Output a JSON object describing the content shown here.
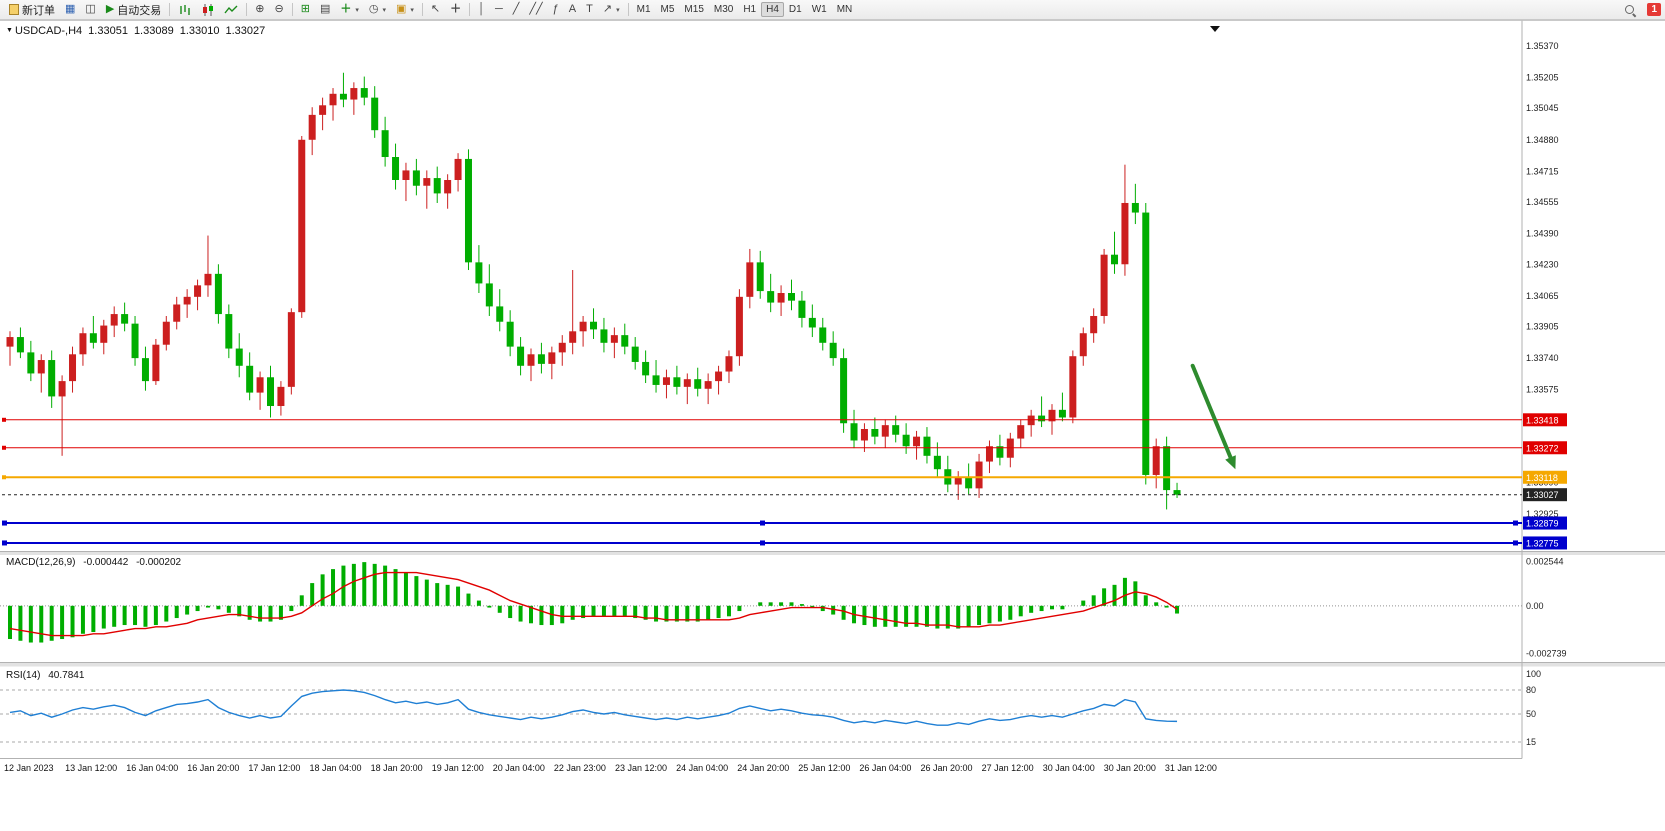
{
  "window": {
    "badge_count": "1"
  },
  "toolbar": {
    "new_order_label": "新订单",
    "auto_trading_label": "自动交易",
    "timeframes": [
      "M1",
      "M5",
      "M15",
      "M30",
      "H1",
      "H4",
      "D1",
      "W1",
      "MN"
    ],
    "active_timeframe": "H4"
  },
  "quote": {
    "symbol": "USDCAD-,H4",
    "open": "1.33051",
    "high": "1.33089",
    "low": "1.33010",
    "close": "1.33027"
  },
  "indicators": {
    "macd": {
      "label": "MACD(12,26,9)",
      "value_main": "-0.000442",
      "value_signal": "-0.000202",
      "axis_labels": [
        "0.002544",
        "0.00",
        "-0.002739"
      ],
      "axis_values": [
        0.002544,
        0,
        -0.002739
      ]
    },
    "rsi": {
      "label": "RSI(14)",
      "value": "40.7841",
      "axis_labels": [
        "100",
        "80",
        "50",
        "15"
      ],
      "axis_values": [
        100,
        80,
        50,
        15
      ],
      "levels": [
        80,
        50,
        15
      ]
    }
  },
  "chart_data": {
    "type": "candlestick",
    "symbol": "USDCAD-",
    "timeframe": "H4",
    "up_color": "#cc1f1f",
    "down_color": "#00ad00",
    "price_max": 1.35474,
    "price_min": 1.32733,
    "y_axis_labels": [
      "1.35370",
      "1.35205",
      "1.35045",
      "1.34880",
      "1.34715",
      "1.34555",
      "1.34390",
      "1.34230",
      "1.34065",
      "1.33905",
      "1.33740",
      "1.33575",
      "1.33090",
      "1.32925"
    ],
    "x_labels": [
      "12 Jan 2023",
      "13 Jan 12:00",
      "16 Jan 04:00",
      "16 Jan 20:00",
      "17 Jan 12:00",
      "18 Jan 04:00",
      "18 Jan 20:00",
      "19 Jan 12:00",
      "20 Jan 04:00",
      "22 Jan 23:00",
      "23 Jan 12:00",
      "24 Jan 04:00",
      "24 Jan 20:00",
      "25 Jan 12:00",
      "26 Jan 04:00",
      "26 Jan 20:00",
      "27 Jan 12:00",
      "30 Jan 04:00",
      "30 Jan 20:00",
      "31 Jan 12:00"
    ],
    "candles": [
      [
        1.338,
        1.3388,
        1.337,
        1.3385
      ],
      [
        1.3385,
        1.339,
        1.3374,
        1.3377
      ],
      [
        1.3377,
        1.3383,
        1.3362,
        1.3366
      ],
      [
        1.3366,
        1.3376,
        1.3356,
        1.3373
      ],
      [
        1.3373,
        1.3378,
        1.3348,
        1.3354
      ],
      [
        1.3354,
        1.3365,
        1.3323,
        1.3362
      ],
      [
        1.3362,
        1.338,
        1.3356,
        1.3376
      ],
      [
        1.3376,
        1.339,
        1.337,
        1.3387
      ],
      [
        1.3387,
        1.3396,
        1.3379,
        1.3382
      ],
      [
        1.3382,
        1.3394,
        1.3376,
        1.3391
      ],
      [
        1.3391,
        1.3401,
        1.3385,
        1.3397
      ],
      [
        1.3397,
        1.3403,
        1.3388,
        1.3392
      ],
      [
        1.3392,
        1.3396,
        1.337,
        1.3374
      ],
      [
        1.3374,
        1.338,
        1.3357,
        1.3362
      ],
      [
        1.3362,
        1.3384,
        1.336,
        1.3381
      ],
      [
        1.3381,
        1.3396,
        1.3378,
        1.3393
      ],
      [
        1.3393,
        1.3406,
        1.3389,
        1.3402
      ],
      [
        1.3402,
        1.341,
        1.3395,
        1.3406
      ],
      [
        1.3406,
        1.3415,
        1.3399,
        1.3412
      ],
      [
        1.3412,
        1.3438,
        1.3406,
        1.3418
      ],
      [
        1.3418,
        1.3423,
        1.3392,
        1.3397
      ],
      [
        1.3397,
        1.3402,
        1.3374,
        1.3379
      ],
      [
        1.3379,
        1.3387,
        1.3364,
        1.337
      ],
      [
        1.337,
        1.3377,
        1.3352,
        1.3356
      ],
      [
        1.3356,
        1.3367,
        1.3347,
        1.3364
      ],
      [
        1.3364,
        1.337,
        1.3343,
        1.3349
      ],
      [
        1.3349,
        1.3362,
        1.3344,
        1.3359
      ],
      [
        1.3359,
        1.34,
        1.3355,
        1.3398
      ],
      [
        1.3398,
        1.349,
        1.3395,
        1.3488
      ],
      [
        1.3488,
        1.3505,
        1.348,
        1.3501
      ],
      [
        1.3501,
        1.351,
        1.3493,
        1.3506
      ],
      [
        1.3506,
        1.3515,
        1.3498,
        1.3512
      ],
      [
        1.3512,
        1.3523,
        1.3505,
        1.3509
      ],
      [
        1.3509,
        1.3518,
        1.3501,
        1.3515
      ],
      [
        1.3515,
        1.3521,
        1.3506,
        1.351
      ],
      [
        1.351,
        1.3516,
        1.3489,
        1.3493
      ],
      [
        1.3493,
        1.35,
        1.3474,
        1.3479
      ],
      [
        1.3479,
        1.3486,
        1.3462,
        1.3467
      ],
      [
        1.3467,
        1.3476,
        1.3456,
        1.3472
      ],
      [
        1.3472,
        1.3478,
        1.3459,
        1.3464
      ],
      [
        1.3464,
        1.3472,
        1.3452,
        1.3468
      ],
      [
        1.3468,
        1.3474,
        1.3455,
        1.346
      ],
      [
        1.346,
        1.347,
        1.3452,
        1.3467
      ],
      [
        1.3467,
        1.3481,
        1.3461,
        1.3478
      ],
      [
        1.3478,
        1.3483,
        1.342,
        1.3424
      ],
      [
        1.3424,
        1.3433,
        1.3408,
        1.3413
      ],
      [
        1.3413,
        1.3423,
        1.3396,
        1.3401
      ],
      [
        1.3401,
        1.341,
        1.3388,
        1.3393
      ],
      [
        1.3393,
        1.3399,
        1.3375,
        1.338
      ],
      [
        1.338,
        1.3385,
        1.3365,
        1.337
      ],
      [
        1.337,
        1.3379,
        1.3362,
        1.3376
      ],
      [
        1.3376,
        1.3382,
        1.3366,
        1.3371
      ],
      [
        1.3371,
        1.338,
        1.3363,
        1.3377
      ],
      [
        1.3377,
        1.3386,
        1.337,
        1.3382
      ],
      [
        1.3382,
        1.342,
        1.3376,
        1.3388
      ],
      [
        1.3388,
        1.3396,
        1.338,
        1.3393
      ],
      [
        1.3393,
        1.34,
        1.3384,
        1.3389
      ],
      [
        1.3389,
        1.3395,
        1.3377,
        1.3382
      ],
      [
        1.3382,
        1.339,
        1.3374,
        1.3386
      ],
      [
        1.3386,
        1.3392,
        1.3376,
        1.338
      ],
      [
        1.338,
        1.3385,
        1.3368,
        1.3372
      ],
      [
        1.3372,
        1.3378,
        1.3361,
        1.3365
      ],
      [
        1.3365,
        1.3373,
        1.3356,
        1.336
      ],
      [
        1.336,
        1.3368,
        1.3353,
        1.3364
      ],
      [
        1.3364,
        1.337,
        1.3355,
        1.3359
      ],
      [
        1.3359,
        1.3366,
        1.335,
        1.3363
      ],
      [
        1.3363,
        1.3369,
        1.3354,
        1.3358
      ],
      [
        1.3358,
        1.3366,
        1.335,
        1.3362
      ],
      [
        1.3362,
        1.337,
        1.3355,
        1.3367
      ],
      [
        1.3367,
        1.3378,
        1.3361,
        1.3375
      ],
      [
        1.3375,
        1.341,
        1.337,
        1.3406
      ],
      [
        1.3406,
        1.3431,
        1.34,
        1.3424
      ],
      [
        1.3424,
        1.343,
        1.3405,
        1.3409
      ],
      [
        1.3409,
        1.3418,
        1.3398,
        1.3403
      ],
      [
        1.3403,
        1.3412,
        1.3396,
        1.3408
      ],
      [
        1.3408,
        1.3415,
        1.3399,
        1.3404
      ],
      [
        1.3404,
        1.3409,
        1.339,
        1.3395
      ],
      [
        1.3395,
        1.3402,
        1.3385,
        1.339
      ],
      [
        1.339,
        1.3395,
        1.3378,
        1.3382
      ],
      [
        1.3382,
        1.3388,
        1.337,
        1.3374
      ],
      [
        1.3374,
        1.3379,
        1.3335,
        1.334
      ],
      [
        1.334,
        1.3347,
        1.3327,
        1.3331
      ],
      [
        1.3331,
        1.334,
        1.3325,
        1.3337
      ],
      [
        1.3337,
        1.3343,
        1.3329,
        1.3333
      ],
      [
        1.3333,
        1.3342,
        1.3327,
        1.3339
      ],
      [
        1.3339,
        1.3344,
        1.333,
        1.3334
      ],
      [
        1.3334,
        1.334,
        1.3324,
        1.3328
      ],
      [
        1.3328,
        1.3336,
        1.3321,
        1.3333
      ],
      [
        1.3333,
        1.3338,
        1.3319,
        1.3323
      ],
      [
        1.3323,
        1.333,
        1.3312,
        1.3316
      ],
      [
        1.3316,
        1.3323,
        1.3304,
        1.3308
      ],
      [
        1.3308,
        1.3315,
        1.33,
        1.3312
      ],
      [
        1.3312,
        1.3319,
        1.3303,
        1.3306
      ],
      [
        1.3306,
        1.3324,
        1.3301,
        1.332
      ],
      [
        1.332,
        1.3331,
        1.3314,
        1.3328
      ],
      [
        1.3328,
        1.3334,
        1.3318,
        1.3322
      ],
      [
        1.3322,
        1.3335,
        1.3317,
        1.3332
      ],
      [
        1.3332,
        1.3342,
        1.3327,
        1.3339
      ],
      [
        1.3339,
        1.3347,
        1.3333,
        1.3344
      ],
      [
        1.3344,
        1.3354,
        1.3338,
        1.3341
      ],
      [
        1.3341,
        1.335,
        1.3334,
        1.3347
      ],
      [
        1.3347,
        1.3356,
        1.3341,
        1.3343
      ],
      [
        1.3343,
        1.3378,
        1.334,
        1.3375
      ],
      [
        1.3375,
        1.339,
        1.337,
        1.3387
      ],
      [
        1.3387,
        1.34,
        1.3382,
        1.3396
      ],
      [
        1.3396,
        1.3431,
        1.3392,
        1.3428
      ],
      [
        1.3428,
        1.344,
        1.3418,
        1.3423
      ],
      [
        1.3423,
        1.3475,
        1.3417,
        1.3455
      ],
      [
        1.3455,
        1.3465,
        1.3444,
        1.345
      ],
      [
        1.345,
        1.3455,
        1.3308,
        1.3313
      ],
      [
        1.3313,
        1.3332,
        1.3306,
        1.3328
      ],
      [
        1.3328,
        1.3333,
        1.3295,
        1.33051
      ],
      [
        1.33051,
        1.33089,
        1.3301,
        1.33027
      ]
    ],
    "hlines": [
      {
        "price": 1.33418,
        "color": "#e00000",
        "width": 1,
        "tag": "1.33418"
      },
      {
        "price": 1.33272,
        "color": "#e00000",
        "width": 1,
        "tag": "1.33272"
      },
      {
        "price": 1.33118,
        "color": "#f5a800",
        "width": 2,
        "tag": "1.33118"
      },
      {
        "price": 1.33027,
        "color": "#222222",
        "width": 1,
        "style": "dash",
        "tag": "1.33027",
        "is_current": true
      },
      {
        "price": 1.32879,
        "color": "#0000cd",
        "width": 2,
        "tag": "1.32879",
        "handles": true
      },
      {
        "price": 1.32775,
        "color": "#0000cd",
        "width": 2,
        "tag": "1.32775",
        "handles": true
      }
    ],
    "arrow": {
      "i1": 113.5,
      "p1": 1.337,
      "i2": 117.6,
      "p2": 1.3316,
      "color": "#2e8b2e",
      "width": 4
    },
    "macd": {
      "scale_max": 0.00285,
      "scale_min": -0.0031,
      "histogram": [
        -0.0019,
        -0.002,
        -0.0021,
        -0.0021,
        -0.002,
        -0.0019,
        -0.0018,
        -0.0016,
        -0.0015,
        -0.0013,
        -0.0012,
        -0.0011,
        -0.0011,
        -0.0012,
        -0.0011,
        -0.0009,
        -0.0007,
        -0.0005,
        -0.0003,
        -0.0001,
        -0.0002,
        -0.0004,
        -0.0006,
        -0.0008,
        -0.0009,
        -0.0009,
        -0.0008,
        -0.0003,
        0.0006,
        0.0013,
        0.0018,
        0.0021,
        0.0023,
        0.0024,
        0.0025,
        0.0024,
        0.0023,
        0.0021,
        0.0019,
        0.0017,
        0.0015,
        0.0013,
        0.0012,
        0.0011,
        0.0007,
        0.0003,
        -0.0001,
        -0.0004,
        -0.0007,
        -0.0009,
        -0.001,
        -0.0011,
        -0.0011,
        -0.001,
        -0.0008,
        -0.0007,
        -0.0006,
        -0.0006,
        -0.0006,
        -0.0006,
        -0.0007,
        -0.0008,
        -0.0009,
        -0.0009,
        -0.0009,
        -0.0009,
        -0.0009,
        -0.0008,
        -0.0007,
        -0.0006,
        -0.0003,
        0.0,
        0.0002,
        0.0002,
        0.0002,
        0.0002,
        0.0001,
        -0.0001,
        -0.0003,
        -0.0005,
        -0.0008,
        -0.001,
        -0.0011,
        -0.0012,
        -0.0012,
        -0.0012,
        -0.0012,
        -0.0012,
        -0.0012,
        -0.0013,
        -0.0013,
        -0.0013,
        -0.0012,
        -0.0011,
        -0.001,
        -0.0009,
        -0.0008,
        -0.0006,
        -0.0004,
        -0.0003,
        -0.0002,
        -0.0002,
        0.0,
        0.0003,
        0.0006,
        0.001,
        0.0012,
        0.0016,
        0.0014,
        0.0006,
        0.0002,
        -0.0001,
        -0.000442
      ],
      "signal": [
        -0.0013,
        -0.0014,
        -0.0015,
        -0.0016,
        -0.0017,
        -0.0017,
        -0.0017,
        -0.0017,
        -0.0016,
        -0.0016,
        -0.0015,
        -0.0014,
        -0.0013,
        -0.0013,
        -0.0012,
        -0.0012,
        -0.0011,
        -0.001,
        -0.0008,
        -0.0007,
        -0.0006,
        -0.0005,
        -0.0005,
        -0.0006,
        -0.0007,
        -0.0007,
        -0.0007,
        -0.0006,
        -0.0004,
        0.0,
        0.0004,
        0.0007,
        0.0011,
        0.0014,
        0.0016,
        0.0018,
        0.0019,
        0.0019,
        0.0019,
        0.0019,
        0.0018,
        0.0017,
        0.0016,
        0.0015,
        0.0013,
        0.0011,
        0.0009,
        0.0006,
        0.0003,
        0.0001,
        -0.0001,
        -0.0003,
        -0.0005,
        -0.0006,
        -0.0006,
        -0.0006,
        -0.0006,
        -0.0006,
        -0.0006,
        -0.0006,
        -0.0006,
        -0.0007,
        -0.0007,
        -0.0008,
        -0.0008,
        -0.0008,
        -0.0008,
        -0.0008,
        -0.0008,
        -0.0008,
        -0.0007,
        -0.0005,
        -0.0004,
        -0.0003,
        -0.0002,
        -0.0001,
        -0.0001,
        -0.0001,
        -0.0001,
        -0.0002,
        -0.0003,
        -0.0005,
        -0.0006,
        -0.0007,
        -0.0008,
        -0.0009,
        -0.001,
        -0.001,
        -0.0011,
        -0.0011,
        -0.0011,
        -0.0012,
        -0.0012,
        -0.0012,
        -0.0011,
        -0.0011,
        -0.001,
        -0.0009,
        -0.0008,
        -0.0007,
        -0.0006,
        -0.0005,
        -0.0004,
        -0.0003,
        -0.0001,
        0.0001,
        0.0003,
        0.0006,
        0.0008,
        0.0007,
        0.0005,
        0.0002,
        -0.000202
      ]
    },
    "rsi": {
      "values": [
        52,
        54,
        48,
        51,
        46,
        50,
        55,
        58,
        56,
        59,
        61,
        58,
        52,
        48,
        54,
        58,
        62,
        63,
        65,
        68,
        58,
        52,
        48,
        45,
        48,
        45,
        47,
        60,
        72,
        76,
        78,
        79,
        80,
        79,
        77,
        73,
        68,
        64,
        66,
        63,
        65,
        62,
        64,
        68,
        56,
        52,
        49,
        47,
        45,
        43,
        46,
        44,
        46,
        49,
        53,
        55,
        52,
        50,
        52,
        49,
        47,
        45,
        43,
        45,
        43,
        46,
        44,
        46,
        48,
        51,
        57,
        60,
        57,
        54,
        56,
        54,
        51,
        49,
        48,
        46,
        42,
        39,
        41,
        39,
        42,
        40,
        38,
        41,
        38,
        36,
        36,
        39,
        37,
        41,
        44,
        42,
        43,
        46,
        48,
        46,
        48,
        46,
        50,
        54,
        57,
        62,
        60,
        68,
        65,
        44,
        42,
        41,
        40.7841
      ]
    }
  }
}
